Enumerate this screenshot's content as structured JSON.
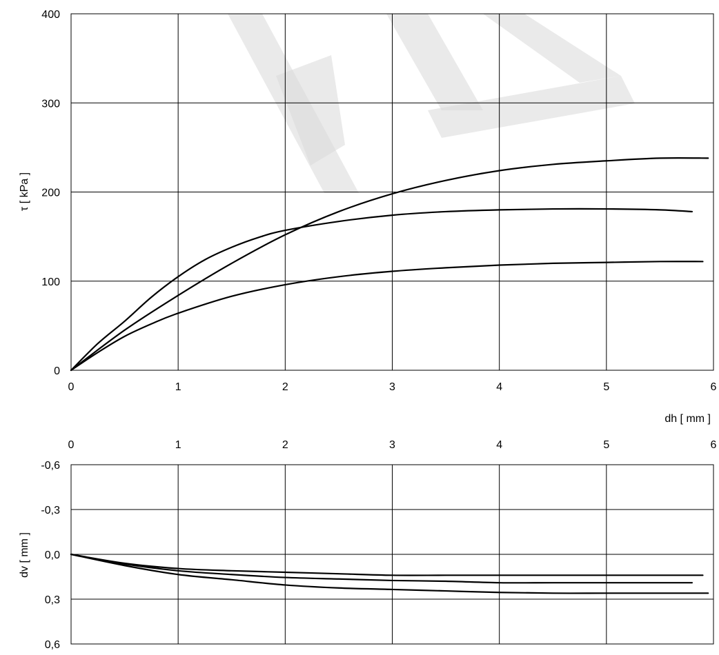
{
  "chart_data": [
    {
      "type": "line",
      "title": "",
      "xlabel": "dh [ mm ]",
      "ylabel": "τ [ kPa ]",
      "xlim": [
        0,
        6
      ],
      "ylim": [
        0,
        400
      ],
      "xticks": [
        "0",
        "1",
        "2",
        "3",
        "4",
        "5",
        "6"
      ],
      "yticks": [
        "0",
        "100",
        "200",
        "300",
        "400"
      ],
      "grid": true,
      "line_color": "#000000",
      "series": [
        {
          "x": [
            0,
            0.25,
            0.5,
            0.75,
            1,
            1.25,
            1.5,
            1.75,
            2,
            2.5,
            3,
            3.5,
            4,
            4.5,
            5,
            5.5,
            5.8
          ],
          "y": [
            0,
            30,
            55,
            82,
            105,
            124,
            138,
            149,
            157,
            167,
            174,
            178,
            180,
            181,
            181,
            180,
            178
          ]
        },
        {
          "x": [
            0,
            0.5,
            1,
            1.5,
            2,
            2.5,
            3,
            3.5,
            4,
            4.5,
            5,
            5.5,
            5.95
          ],
          "y": [
            0,
            45,
            84,
            120,
            152,
            178,
            198,
            213,
            224,
            231,
            235,
            238,
            238
          ]
        },
        {
          "x": [
            0,
            0.25,
            0.5,
            0.75,
            1,
            1.5,
            2,
            2.5,
            3,
            3.5,
            4,
            4.5,
            5,
            5.5,
            5.9
          ],
          "y": [
            0,
            20,
            38,
            52,
            64,
            83,
            96,
            105,
            111,
            115,
            118,
            120,
            121,
            122,
            122
          ]
        }
      ]
    },
    {
      "type": "line",
      "title": "",
      "xlabel": "",
      "ylabel": "dv [ mm ]",
      "xlim": [
        0,
        6
      ],
      "ylim": [
        -0.6,
        0.6
      ],
      "y_inverted": true,
      "xticks": [
        "0",
        "1",
        "2",
        "3",
        "4",
        "5",
        "6"
      ],
      "yticks": [
        "-0,6",
        "-0,3",
        "0,0",
        "0,3",
        "0,6"
      ],
      "grid": true,
      "line_color": "#000000",
      "series": [
        {
          "x": [
            0,
            0.5,
            1,
            1.5,
            2,
            2.5,
            3,
            3.5,
            4,
            4.5,
            5,
            5.5,
            5.9
          ],
          "y": [
            0,
            0.06,
            0.095,
            0.11,
            0.12,
            0.13,
            0.14,
            0.14,
            0.14,
            0.14,
            0.14,
            0.14,
            0.14
          ]
        },
        {
          "x": [
            0,
            0.5,
            1,
            1.5,
            2,
            2.5,
            3,
            3.5,
            4,
            4.5,
            5,
            5.5,
            5.8
          ],
          "y": [
            0,
            0.065,
            0.11,
            0.135,
            0.155,
            0.165,
            0.175,
            0.18,
            0.19,
            0.19,
            0.19,
            0.19,
            0.19
          ]
        },
        {
          "x": [
            0,
            0.5,
            1,
            1.5,
            2,
            2.5,
            3,
            3.5,
            4,
            4.5,
            5,
            5.5,
            5.95
          ],
          "y": [
            0,
            0.075,
            0.135,
            0.17,
            0.205,
            0.225,
            0.235,
            0.245,
            0.255,
            0.26,
            0.26,
            0.26,
            0.26
          ]
        }
      ]
    }
  ]
}
